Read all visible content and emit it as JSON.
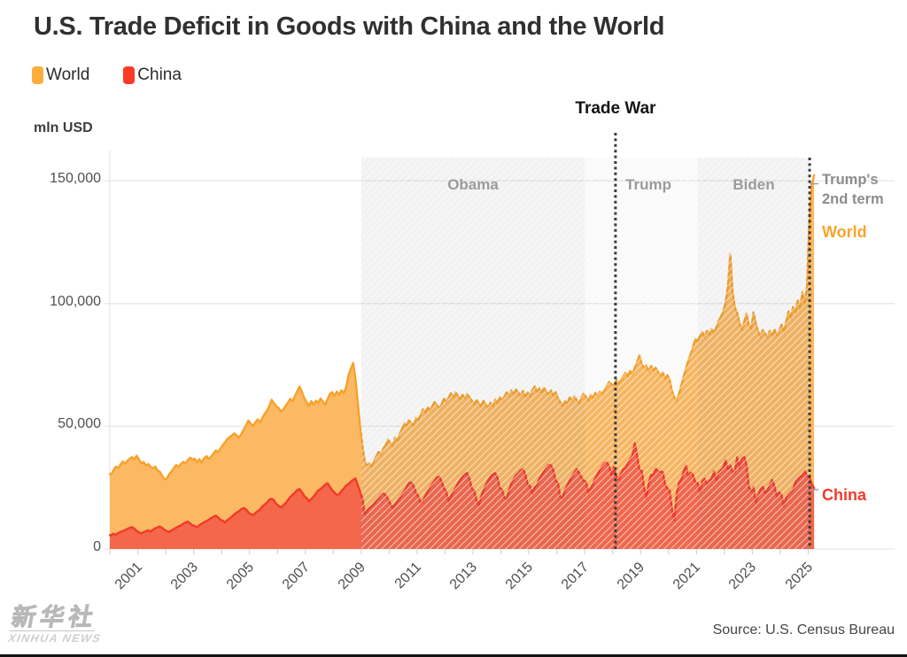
{
  "header": {
    "title": "U.S. Trade Deficit in Goods with China and the World"
  },
  "legend": [
    {
      "label": "World",
      "color": "#FBAD3C"
    },
    {
      "label": "China",
      "color": "#FA3A28"
    }
  ],
  "axis": {
    "unit_label": "mln USD",
    "y_ticks": [
      "0",
      "50,000",
      "100,000",
      "150,000"
    ],
    "y_tick_values": [
      0,
      50000,
      100000,
      150000
    ],
    "x_ticks": [
      "2001",
      "2003",
      "2005",
      "2007",
      "2009",
      "2011",
      "2013",
      "2015",
      "2017",
      "2019",
      "2021",
      "2023",
      "2025"
    ],
    "x_tick_years": [
      2001,
      2003,
      2005,
      2007,
      2009,
      2011,
      2013,
      2015,
      2017,
      2019,
      2021,
      2023,
      2025
    ]
  },
  "annotations": {
    "trade_war": "Trade War",
    "trump_2nd_term": "Trump's 2nd term",
    "world_line": "World",
    "china_line": "China"
  },
  "footer": {
    "source": "Source: U.S. Census Bureau",
    "watermark_cn": "新华社",
    "watermark_en": "XINHUA NEWS"
  },
  "chart_data": {
    "type": "area",
    "title": "U.S. Trade Deficit in Goods with China and the World",
    "unit": "mln USD",
    "frequency": "monthly",
    "x_start": "2000-01",
    "x_end": "2025-03",
    "ylim": [
      0,
      160000
    ],
    "grid": "horizontal",
    "legend_position": "top-left",
    "y_gridlines": [
      0,
      50000,
      100000,
      150000
    ],
    "periods": [
      {
        "label": "Obama",
        "start": 2009.0,
        "end": 2017.0,
        "shade": "dark"
      },
      {
        "label": "Trump",
        "start": 2017.0,
        "end": 2021.05,
        "shade": "light"
      },
      {
        "label": "Biden",
        "start": 2021.05,
        "end": 2025.05,
        "shade": "dark"
      }
    ],
    "events": [
      {
        "label": "Trade War",
        "x": 2018.1,
        "top": 150
      },
      {
        "label": "Trump's 2nd term",
        "x": 2025.05,
        "top": 178
      }
    ],
    "series": [
      {
        "name": "World",
        "fill": "#FBB963",
        "stroke": "#F8A12B",
        "values": [
          30500,
          31800,
          33500,
          33000,
          34200,
          35600,
          34800,
          35900,
          36800,
          37400,
          36500,
          38000,
          36500,
          34800,
          35500,
          34000,
          34600,
          33500,
          32800,
          33600,
          32000,
          31500,
          29800,
          28300,
          28800,
          30500,
          31600,
          33000,
          34200,
          33400,
          34600,
          35500,
          34800,
          36200,
          37200,
          36400,
          36800,
          35400,
          36600,
          35200,
          36900,
          37800,
          36700,
          37600,
          38900,
          40200,
          39400,
          40800,
          42300,
          43500,
          44800,
          45600,
          46300,
          47100,
          46200,
          45400,
          46900,
          48600,
          50400,
          52300,
          51200,
          50100,
          51600,
          52800,
          51500,
          53400,
          55000,
          56400,
          58200,
          60800,
          59400,
          58100,
          57400,
          55900,
          56800,
          58300,
          59700,
          61200,
          60100,
          62300,
          64400,
          66200,
          64100,
          61500,
          59800,
          58300,
          60200,
          58900,
          60400,
          59600,
          61300,
          60100,
          58800,
          60900,
          63200,
          63900,
          62400,
          64100,
          62800,
          64600,
          63500,
          65900,
          70600,
          73300,
          75800,
          69400,
          59900,
          50200,
          42100,
          35800,
          33900,
          34800,
          33600,
          35900,
          37800,
          39600,
          38400,
          40900,
          42300,
          44600,
          43200,
          41800,
          45300,
          44100,
          46800,
          48900,
          51200,
          50100,
          52400,
          51300,
          50200,
          53400,
          52600,
          54800,
          56900,
          55400,
          57800,
          56300,
          58100,
          59900,
          58600,
          57400,
          58800,
          61300,
          59800,
          61600,
          63400,
          61900,
          63800,
          62400,
          60900,
          62800,
          61400,
          63100,
          61800,
          60400,
          58900,
          60700,
          59300,
          58100,
          60400,
          58800,
          57400,
          59600,
          58300,
          60800,
          59500,
          61900,
          60400,
          62100,
          63800,
          62300,
          64600,
          63100,
          64900,
          63600,
          62200,
          64400,
          61900,
          63700,
          62300,
          64800,
          66200,
          63900,
          65400,
          63800,
          65600,
          64100,
          62800,
          64600,
          62400,
          63900,
          61400,
          59800,
          58400,
          60300,
          59100,
          61800,
          60400,
          62100,
          60800,
          59400,
          61600,
          63200,
          62100,
          60400,
          62800,
          61300,
          63600,
          62400,
          64100,
          63200,
          64800,
          66400,
          68100,
          67200,
          66300,
          68900,
          67400,
          68600,
          70300,
          71800,
          70400,
          72600,
          71300,
          73900,
          76200,
          78800,
          75400,
          73600,
          74800,
          72300,
          74600,
          72900,
          73800,
          72100,
          70600,
          71900,
          69400,
          70800,
          68900,
          64300,
          61800,
          60400,
          63200,
          66800,
          70400,
          73600,
          76900,
          79400,
          82300,
          85600,
          84600,
          86900,
          88400,
          86200,
          88900,
          87400,
          89600,
          88100,
          90400,
          92800,
          94600,
          96900,
          100400,
          106800,
          119900,
          104600,
          98400,
          96200,
          91800,
          89400,
          92600,
          95800,
          91300,
          89600,
          96400,
          91800,
          88600,
          86400,
          89200,
          87600,
          86300,
          88900,
          86800,
          89400,
          87200,
          88600,
          91400,
          88600,
          92300,
          96800,
          94200,
          98600,
          96400,
          101200,
          97800,
          104600,
          99800,
          107400,
          134600,
          147800,
          152300
        ]
      },
      {
        "name": "China",
        "fill": "#F4674B",
        "stroke": "#F23A29",
        "values": [
          5600,
          6200,
          5800,
          6400,
          6900,
          7300,
          7600,
          8200,
          8600,
          8900,
          8300,
          7400,
          6800,
          6300,
          6900,
          7200,
          7600,
          7100,
          7800,
          8400,
          8800,
          9200,
          8600,
          7800,
          7300,
          6900,
          7600,
          8100,
          8700,
          9200,
          9600,
          10300,
          10800,
          11200,
          10400,
          9600,
          9400,
          8800,
          9700,
          10300,
          10900,
          11400,
          11900,
          12600,
          13100,
          13600,
          12800,
          11900,
          11500,
          10800,
          11800,
          12400,
          13200,
          14100,
          14800,
          15400,
          16200,
          16700,
          16100,
          14900,
          14200,
          13800,
          14600,
          15400,
          16100,
          17300,
          18100,
          18800,
          20100,
          20500,
          19800,
          18400,
          17600,
          16900,
          17800,
          18600,
          19900,
          21200,
          22100,
          23000,
          24000,
          24400,
          23200,
          21500,
          20800,
          19400,
          20400,
          21300,
          22600,
          23800,
          24400,
          25300,
          26200,
          26800,
          25400,
          23900,
          23100,
          21900,
          22400,
          23600,
          24600,
          25900,
          26400,
          27300,
          28200,
          28700,
          26100,
          23400,
          20600,
          14200,
          15600,
          16800,
          17500,
          18400,
          19700,
          20800,
          22100,
          22700,
          21900,
          20300,
          18300,
          16900,
          18100,
          19300,
          20800,
          22300,
          23600,
          25200,
          26800,
          27100,
          25600,
          22900,
          21500,
          18800,
          19600,
          21600,
          23400,
          25100,
          26500,
          27800,
          29100,
          29400,
          27600,
          24800,
          23400,
          19400,
          21700,
          23200,
          24900,
          26600,
          28100,
          29500,
          30500,
          30900,
          28400,
          24600,
          23800,
          19900,
          17900,
          21300,
          23900,
          26100,
          27900,
          29300,
          30400,
          30900,
          29100,
          24900,
          24100,
          20900,
          20400,
          24100,
          26800,
          28500,
          30100,
          30900,
          32100,
          32500,
          30200,
          26300,
          25600,
          22500,
          25200,
          26100,
          28600,
          30100,
          31600,
          33100,
          34300,
          34100,
          32100,
          27900,
          26800,
          21100,
          20900,
          23900,
          26000,
          27800,
          29400,
          31200,
          32500,
          31100,
          29300,
          27800,
          27400,
          23100,
          24600,
          26400,
          28800,
          30500,
          32200,
          33800,
          34900,
          35400,
          33600,
          30200,
          33400,
          29800,
          28400,
          30600,
          32400,
          33100,
          34800,
          36600,
          38200,
          43100,
          37900,
          32200,
          31800,
          24900,
          20700,
          26900,
          30200,
          30000,
          32800,
          31600,
          31500,
          31300,
          26400,
          24600,
          23700,
          16000,
          11800,
          22300,
          27000,
          28400,
          31600,
          34000,
          29700,
          31100,
          30200,
          27200,
          26900,
          23000,
          27700,
          28600,
          26300,
          27800,
          28600,
          31700,
          28100,
          31200,
          32100,
          33200,
          36200,
          32500,
          34000,
          31400,
          31500,
          37300,
          33100,
          37100,
          37500,
          34200,
          25100,
          23500,
          25200,
          19000,
          22100,
          24200,
          25300,
          22800,
          24000,
          26100,
          28100,
          25500,
          21500,
          23000,
          22100,
          17500,
          21000,
          22400,
          23300,
          24200,
          27200,
          28400,
          29300,
          30100,
          31800,
          29800,
          29200,
          26500,
          24800
        ]
      }
    ]
  }
}
